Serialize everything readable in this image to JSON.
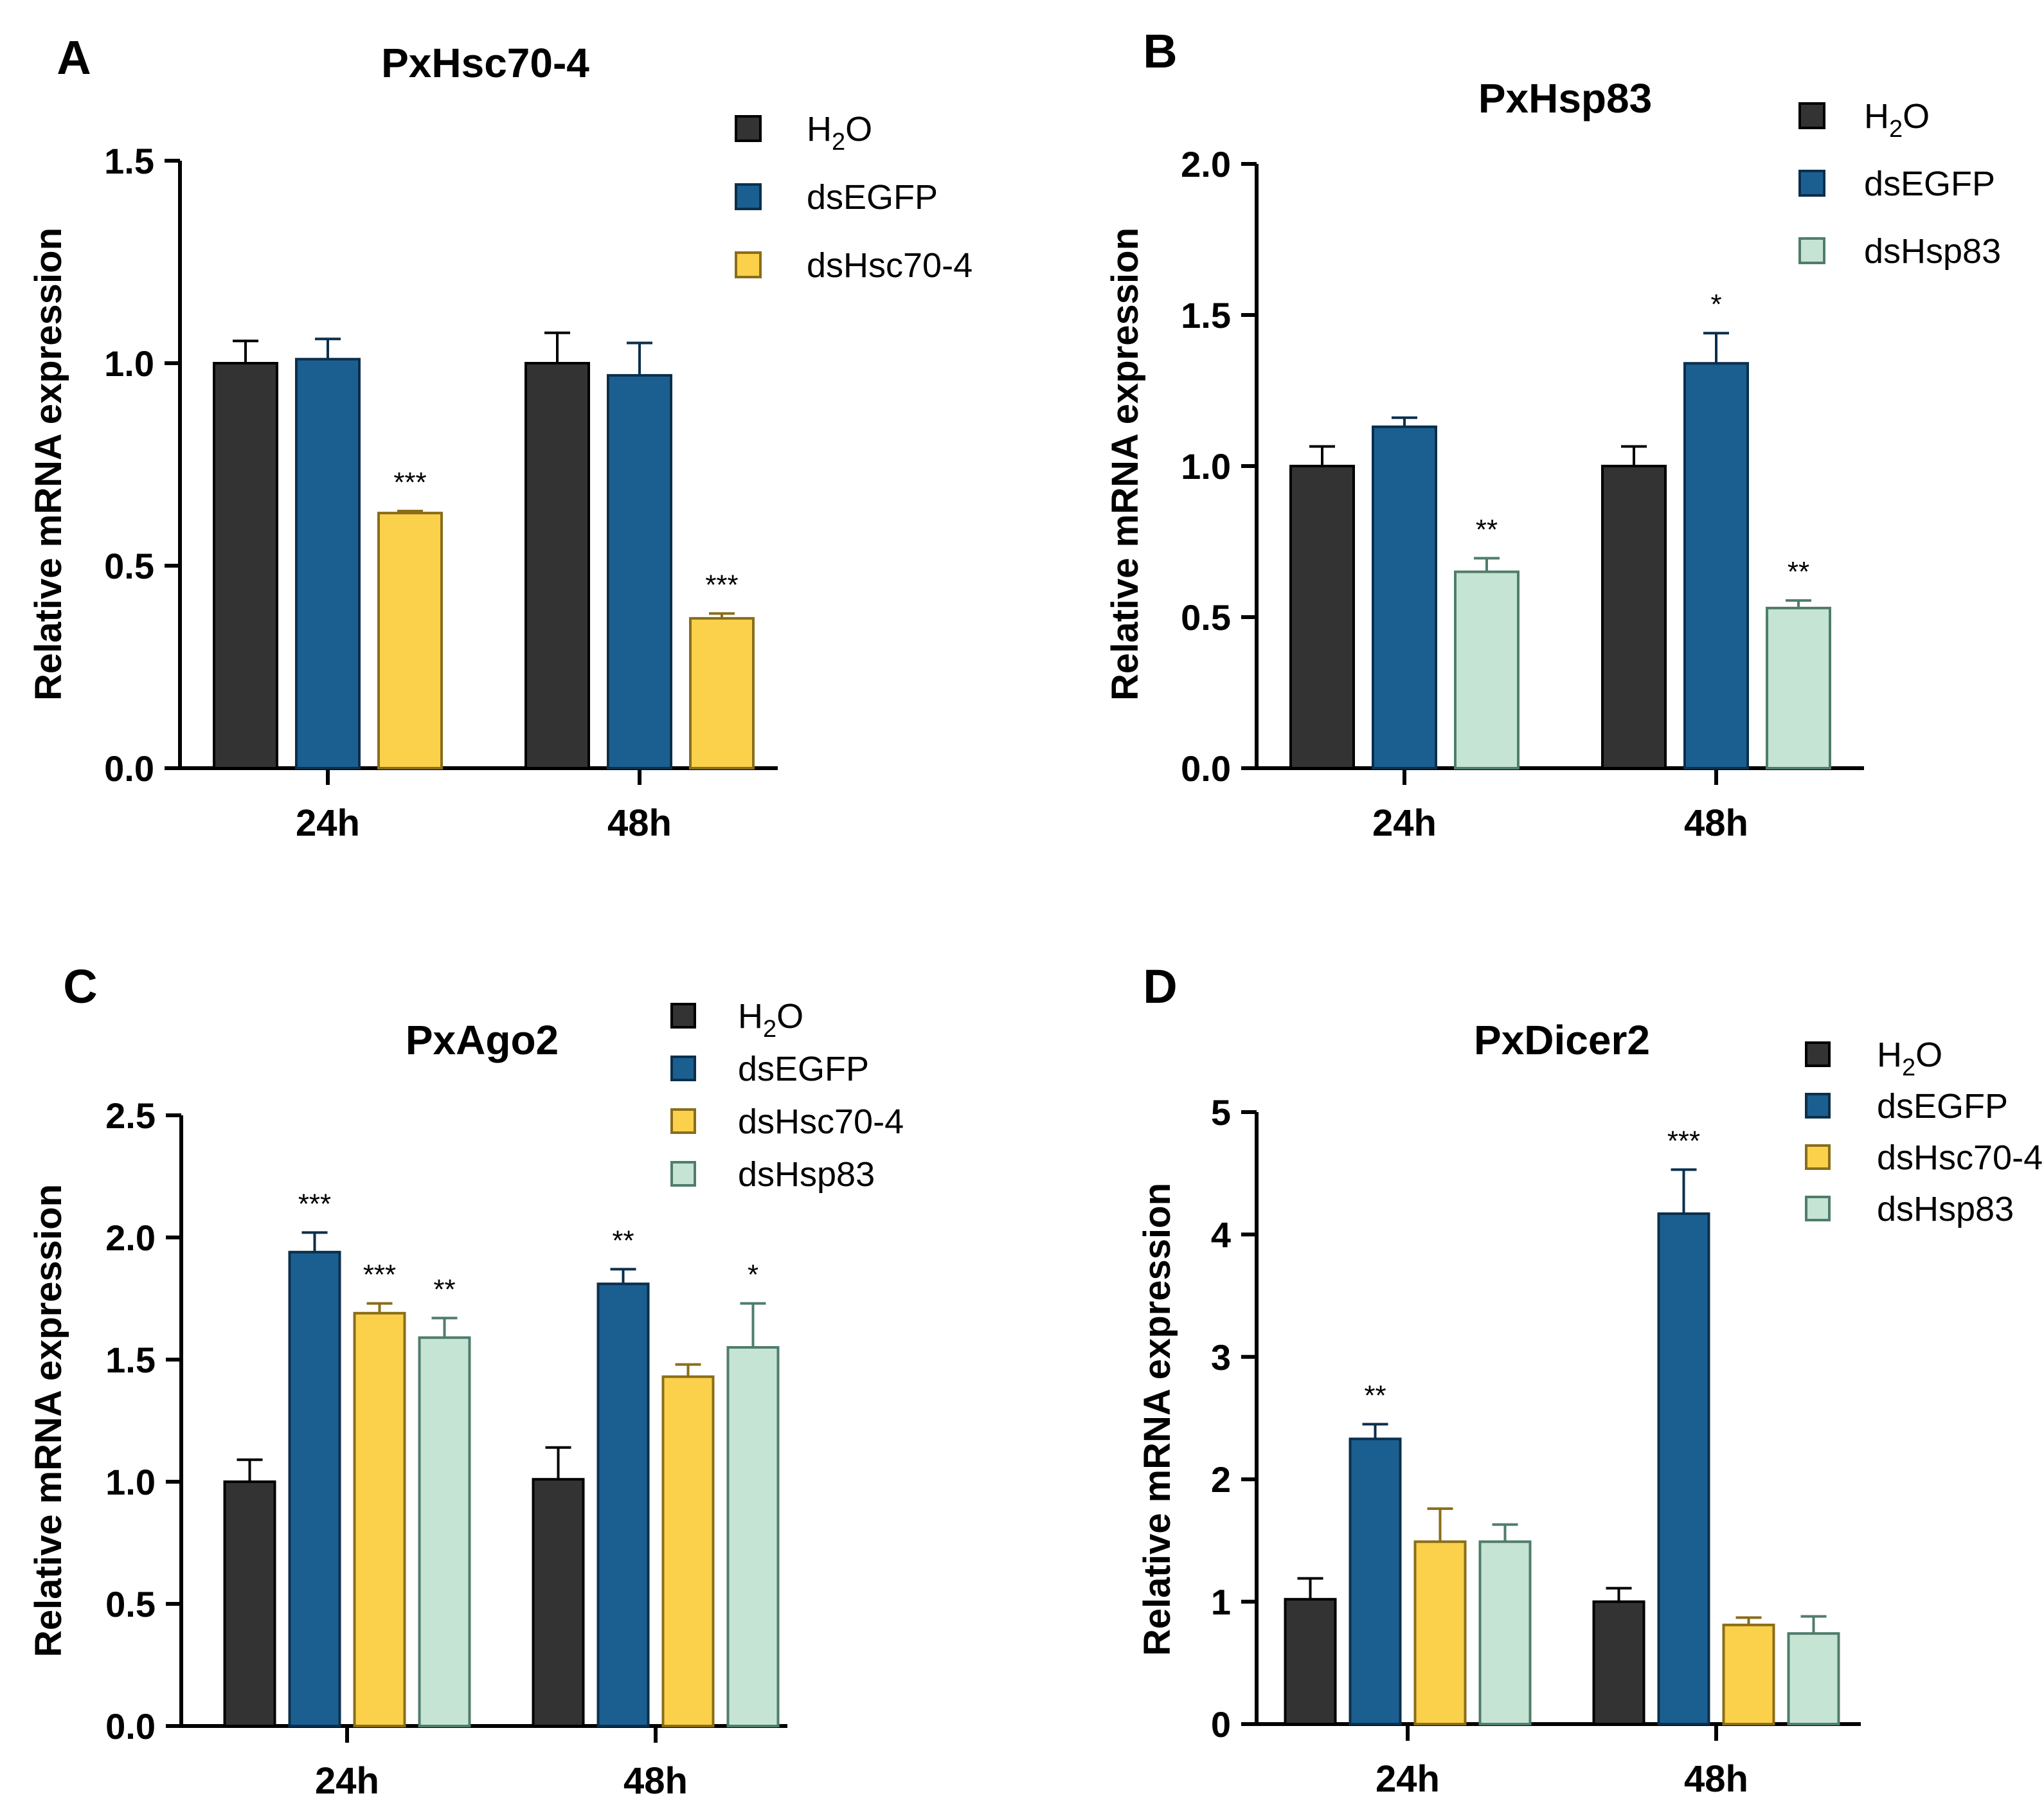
{
  "colors": {
    "H2O": {
      "fill": "#333333",
      "stroke": "#000000"
    },
    "dsEGFP": {
      "fill": "#1b5f91",
      "stroke": "#0b2f4c"
    },
    "dsHsc70-4": {
      "fill": "#fbd14b",
      "stroke": "#8a6d1a"
    },
    "dsHsp83": {
      "fill": "#c6e4d3",
      "stroke": "#4f7d6c"
    }
  },
  "chart_data": [
    {
      "panel": "A",
      "type": "bar",
      "title": "PxHsc70-4",
      "ylabel": "Relative mRNA expression",
      "xlabel": "",
      "ylim": [
        0,
        1.5
      ],
      "yticks": [
        "0.0",
        "0.5",
        "1.0",
        "1.5"
      ],
      "categories": [
        "24h",
        "48h"
      ],
      "legend_position": "top-right",
      "series": [
        {
          "name": "H2O",
          "name_main": "H",
          "name_sub": "2",
          "name_rest": "O",
          "values": [
            1.0,
            1.0
          ],
          "errors": [
            0.055,
            0.075
          ],
          "sig": [
            "",
            ""
          ]
        },
        {
          "name": "dsEGFP",
          "name_main": "dsEGFP",
          "name_sub": "",
          "name_rest": "",
          "values": [
            1.01,
            0.97
          ],
          "errors": [
            0.05,
            0.08
          ],
          "sig": [
            "",
            ""
          ]
        },
        {
          "name": "dsHsc70-4",
          "name_main": "dsHsc70-4",
          "name_sub": "",
          "name_rest": "",
          "values": [
            0.63,
            0.37
          ],
          "errors": [
            0.005,
            0.012
          ],
          "sig": [
            "***",
            "***"
          ]
        }
      ]
    },
    {
      "panel": "B",
      "type": "bar",
      "title": "PxHsp83",
      "ylabel": "Relative mRNA expression",
      "xlabel": "",
      "ylim": [
        0,
        2.0
      ],
      "yticks": [
        "0.0",
        "0.5",
        "1.0",
        "1.5",
        "2.0"
      ],
      "categories": [
        "24h",
        "48h"
      ],
      "legend_position": "top-right",
      "series": [
        {
          "name": "H2O",
          "name_main": "H",
          "name_sub": "2",
          "name_rest": "O",
          "values": [
            1.0,
            1.0
          ],
          "errors": [
            0.065,
            0.065
          ],
          "sig": [
            "",
            ""
          ]
        },
        {
          "name": "dsEGFP",
          "name_main": "dsEGFP",
          "name_sub": "",
          "name_rest": "",
          "values": [
            1.13,
            1.34
          ],
          "errors": [
            0.03,
            0.1
          ],
          "sig": [
            "",
            "*"
          ]
        },
        {
          "name": "dsHsp83",
          "name_main": "dsHsp83",
          "name_sub": "",
          "name_rest": "",
          "values": [
            0.65,
            0.53
          ],
          "errors": [
            0.045,
            0.025
          ],
          "sig": [
            "**",
            "**"
          ]
        }
      ]
    },
    {
      "panel": "C",
      "type": "bar",
      "title": "PxAgo2",
      "ylabel": "Relative mRNA expression",
      "xlabel": "",
      "ylim": [
        0,
        2.5
      ],
      "yticks": [
        "0.0",
        "0.5",
        "1.0",
        "1.5",
        "2.0",
        "2.5"
      ],
      "categories": [
        "24h",
        "48h"
      ],
      "legend_position": "top-right",
      "series": [
        {
          "name": "H2O",
          "name_main": "H",
          "name_sub": "2",
          "name_rest": "O",
          "values": [
            1.0,
            1.01
          ],
          "errors": [
            0.09,
            0.13
          ],
          "sig": [
            "",
            ""
          ]
        },
        {
          "name": "dsEGFP",
          "name_main": "dsEGFP",
          "name_sub": "",
          "name_rest": "",
          "values": [
            1.94,
            1.81
          ],
          "errors": [
            0.08,
            0.06
          ],
          "sig": [
            "***",
            "**"
          ]
        },
        {
          "name": "dsHsc70-4",
          "name_main": "dsHsc70-4",
          "name_sub": "",
          "name_rest": "",
          "values": [
            1.69,
            1.43
          ],
          "errors": [
            0.04,
            0.05
          ],
          "sig": [
            "***",
            ""
          ]
        },
        {
          "name": "dsHsp83",
          "name_main": "dsHsp83",
          "name_sub": "",
          "name_rest": "",
          "values": [
            1.59,
            1.55
          ],
          "errors": [
            0.08,
            0.18
          ],
          "sig": [
            "**",
            "*"
          ]
        }
      ]
    },
    {
      "panel": "D",
      "type": "bar",
      "title": "PxDicer2",
      "ylabel": "Relative mRNA expression",
      "xlabel": "",
      "ylim": [
        0,
        5
      ],
      "yticks": [
        "0",
        "1",
        "2",
        "3",
        "4",
        "5"
      ],
      "categories": [
        "24h",
        "48h"
      ],
      "legend_position": "top-right",
      "series": [
        {
          "name": "H2O",
          "name_main": "H",
          "name_sub": "2",
          "name_rest": "O",
          "values": [
            1.02,
            1.0
          ],
          "errors": [
            0.17,
            0.11
          ],
          "sig": [
            "",
            ""
          ]
        },
        {
          "name": "dsEGFP",
          "name_main": "dsEGFP",
          "name_sub": "",
          "name_rest": "",
          "values": [
            2.33,
            4.17
          ],
          "errors": [
            0.12,
            0.36
          ],
          "sig": [
            "**",
            "***"
          ]
        },
        {
          "name": "dsHsc70-4",
          "name_main": "dsHsc70-4",
          "name_sub": "",
          "name_rest": "",
          "values": [
            1.49,
            0.81
          ],
          "errors": [
            0.27,
            0.06
          ],
          "sig": [
            "",
            ""
          ]
        },
        {
          "name": "dsHsp83",
          "name_main": "dsHsp83",
          "name_sub": "",
          "name_rest": "",
          "values": [
            1.49,
            0.74
          ],
          "errors": [
            0.14,
            0.14
          ],
          "sig": [
            "",
            ""
          ]
        }
      ]
    }
  ]
}
